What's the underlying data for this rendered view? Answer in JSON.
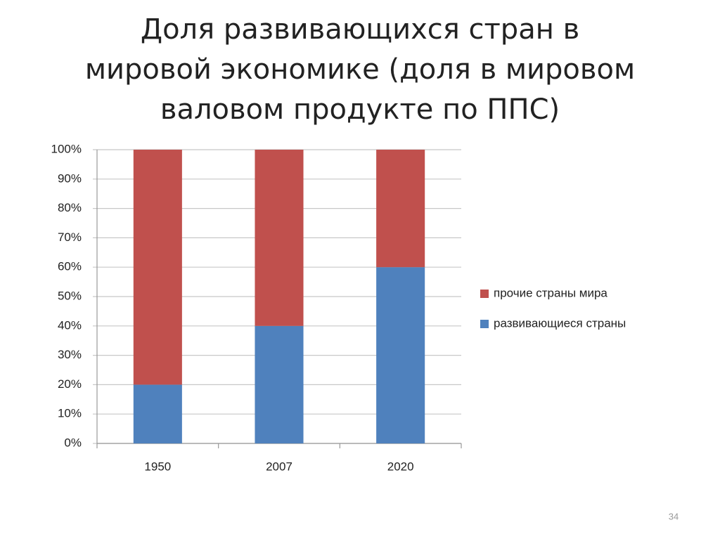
{
  "chart_data": {
    "type": "stacked_bar",
    "title": "Доля развивающихся стран в мировой экономике (доля в мировом валовом продукте по ППС)",
    "categories": [
      "1950",
      "2007",
      "2020"
    ],
    "series": [
      {
        "name": "развивающиеся страны",
        "color": "#4f81bd",
        "values": [
          20,
          40,
          60
        ]
      },
      {
        "name": "прочие страны мира",
        "color": "#c0504d",
        "values": [
          80,
          60,
          40
        ]
      }
    ],
    "ylim": [
      0,
      100
    ],
    "yticks": [
      {
        "value": 0,
        "label": "0%"
      },
      {
        "value": 10,
        "label": "10%"
      },
      {
        "value": 20,
        "label": "20%"
      },
      {
        "value": 30,
        "label": "30%"
      },
      {
        "value": 40,
        "label": "40%"
      },
      {
        "value": 50,
        "label": "50%"
      },
      {
        "value": 60,
        "label": "60%"
      },
      {
        "value": 70,
        "label": "70%"
      },
      {
        "value": 80,
        "label": "80%"
      },
      {
        "value": 90,
        "label": "90%"
      },
      {
        "value": 100,
        "label": "100%"
      }
    ],
    "grid": true,
    "legend": "right"
  },
  "page_number": "34"
}
